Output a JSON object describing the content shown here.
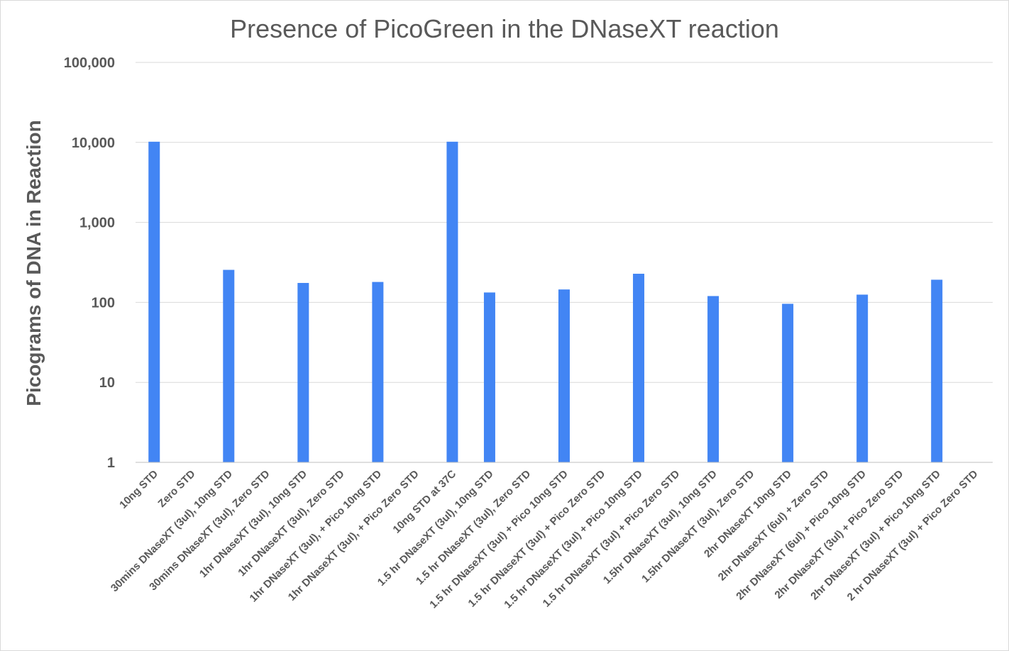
{
  "chart_data": {
    "type": "bar",
    "title": "Presence of PicoGreen in the DNaseXT reaction",
    "xlabel": "",
    "ylabel": "Picograms of DNA in Reaction",
    "yscale": "log",
    "ylim": [
      1,
      100000
    ],
    "yticks": [
      "1",
      "10",
      "100",
      "1,000",
      "10,000",
      "100,000"
    ],
    "yticks_values": [
      1,
      10,
      100,
      1000,
      10000,
      100000
    ],
    "grid": true,
    "legend": "none",
    "bar_color": "#4285F4",
    "categories": [
      "10ng STD",
      "Zero STD",
      "30mins DNaseXT (3ul), 10ng STD",
      "30mins DNaseXT (3ul), Zero STD",
      "1hr DNaseXT (3ul), 10ng STD",
      "1hr DNaseXT (3ul), Zero STD",
      "1hr DNaseXT (3ul), + Pico 10ng STD",
      "1hr DNaseXT (3ul), + Pico Zero STD",
      "10ng STD at 37C",
      "1.5 hr DNaseXT (3ul), 10ng STD",
      "1.5 hr DNaseXT (3ul), Zero STD",
      "1.5 hr DNaseXT (3ul) + Pico 10ng STD",
      "1.5 hr DNaseXT (3ul) + Pico Zero STD",
      "1.5 hr DNaseXT (3ul) + Pico 10ng STD",
      "1.5 hr DNaseXT (3ul) + Pico Zero STD",
      "1.5hr DNaseXT (3ul), 10ng STD",
      "1.5hr DNaseXT (3ul), Zero STD",
      "2hr DNaseXT 10ng STD",
      "2hr DNaseXT (6ul) + Zero STD",
      "2hr DNaseXT (6ul) + Pico 10ng STD",
      "2hr DNaseXT (3ul) + Pico Zero STD",
      "2hr DNaseXT (3ul) + Pico 10ng STD",
      "2 hr DNaseXT (3ul) + Pico Zero STD"
    ],
    "values": [
      10200,
      0,
      255,
      0,
      175,
      0,
      180,
      0,
      10200,
      133,
      0,
      145,
      0,
      228,
      0,
      120,
      0,
      96,
      0,
      125,
      0,
      192,
      0
    ]
  }
}
